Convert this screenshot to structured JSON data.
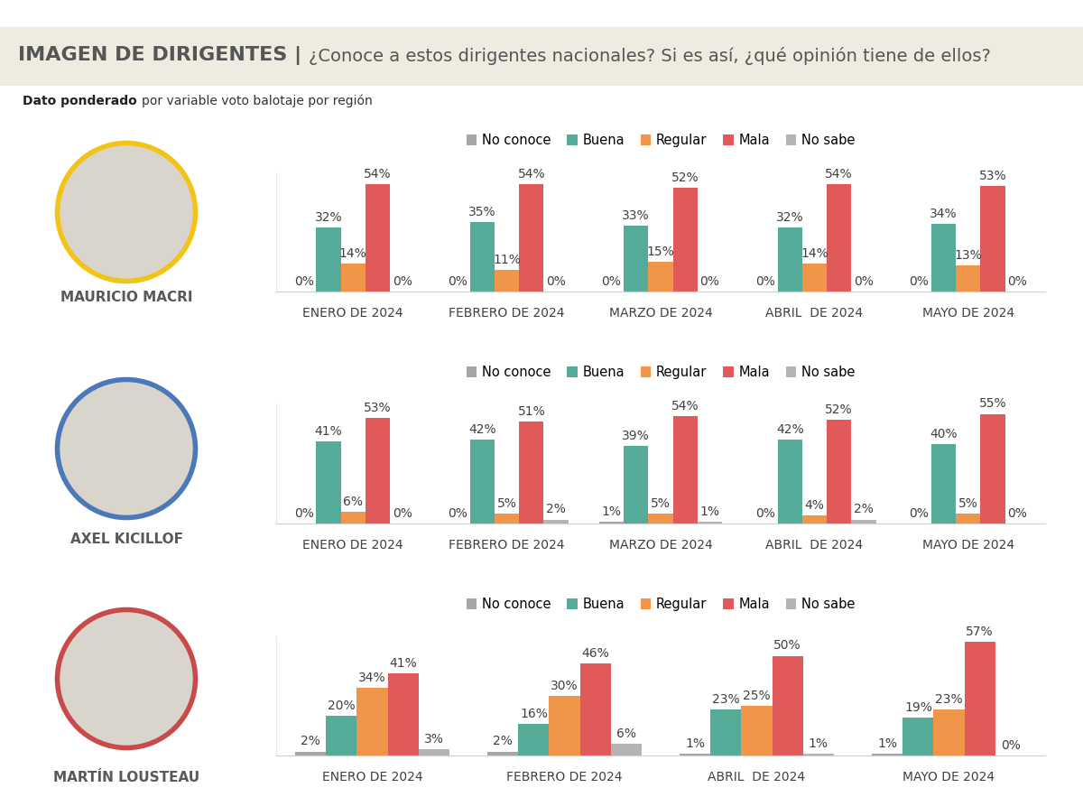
{
  "header": {
    "title": "IMAGEN DE DIRIGENTES |",
    "question": "¿Conoce a estos dirigentes nacionales? Si es así, ¿qué opinión tiene de ellos?",
    "note_bold": "Dato ponderado",
    "note": "por variable voto balotaje por región"
  },
  "chart_data": [
    {
      "type": "bar",
      "title": "MAURICIO MACRI",
      "categories": [
        "ENERO DE 2024",
        "FEBRERO DE 2024",
        "MARZO DE 2024",
        "ABRIL  DE 2024",
        "MAYO DE 2024"
      ],
      "series": [
        {
          "name": "No conoce",
          "color": "#a6a6a6",
          "values": [
            0,
            0,
            0,
            0,
            0
          ],
          "value_labels": [
            "0%",
            "0%",
            "0%",
            "0%",
            "0%"
          ]
        },
        {
          "name": "Buena",
          "color": "#55ab9a",
          "values": [
            32,
            35,
            33,
            32,
            34
          ],
          "value_labels": [
            "32%",
            "35%",
            "33%",
            "32%",
            "34%"
          ]
        },
        {
          "name": "Regular",
          "color": "#f0954a",
          "values": [
            14,
            11,
            15,
            14,
            13
          ],
          "value_labels": [
            "14%",
            "11%",
            "15%",
            "14%",
            "13%"
          ]
        },
        {
          "name": "Mala",
          "color": "#e05a5a",
          "values": [
            54,
            54,
            52,
            54,
            53
          ],
          "value_labels": [
            "54%",
            "54%",
            "52%",
            "54%",
            "53%"
          ]
        },
        {
          "name": "No sabe",
          "color": "#b4b4b4",
          "values": [
            0,
            0,
            0,
            0,
            0
          ],
          "value_labels": [
            "0%",
            "0%",
            "0%",
            "0%",
            "0%"
          ]
        }
      ],
      "ylim": [
        0,
        60
      ],
      "data_labels": true,
      "tick_labels": "x",
      "legend": "upper center",
      "grid": false
    },
    {
      "type": "bar",
      "title": "AXEL KICILLOF",
      "categories": [
        "ENERO DE 2024",
        "FEBRERO DE 2024",
        "MARZO DE 2024",
        "ABRIL  DE 2024",
        "MAYO DE 2024"
      ],
      "series": [
        {
          "name": "No conoce",
          "color": "#a6a6a6",
          "values": [
            0,
            0,
            1,
            0,
            0
          ],
          "value_labels": [
            "0%",
            "0%",
            "1%",
            "0%",
            "0%"
          ]
        },
        {
          "name": "Buena",
          "color": "#55ab9a",
          "values": [
            41,
            42,
            39,
            42,
            40
          ],
          "value_labels": [
            "41%",
            "42%",
            "39%",
            "42%",
            "40%"
          ]
        },
        {
          "name": "Regular",
          "color": "#f0954a",
          "values": [
            6,
            5,
            5,
            4,
            5
          ],
          "value_labels": [
            "6%",
            "5%",
            "5%",
            "4%",
            "5%"
          ]
        },
        {
          "name": "Mala",
          "color": "#e05a5a",
          "values": [
            53,
            51,
            54,
            52,
            55
          ],
          "value_labels": [
            "53%",
            "51%",
            "54%",
            "52%",
            "55%"
          ]
        },
        {
          "name": "No sabe",
          "color": "#b4b4b4",
          "values": [
            0,
            2,
            1,
            2,
            0
          ],
          "value_labels": [
            "0%",
            "2%",
            "1%",
            "2%",
            "0%"
          ]
        }
      ],
      "ylim": [
        0,
        60
      ],
      "data_labels": true,
      "tick_labels": "x",
      "legend": "upper center",
      "grid": false
    },
    {
      "type": "bar",
      "title": "MARTÍN LOUSTEAU",
      "categories": [
        "ENERO DE 2024",
        "FEBRERO DE 2024",
        "ABRIL  DE 2024",
        "MAYO DE 2024"
      ],
      "series": [
        {
          "name": "No conoce",
          "color": "#a6a6a6",
          "values": [
            2,
            2,
            1,
            1
          ],
          "value_labels": [
            "2%",
            "2%",
            "1%",
            "1%"
          ]
        },
        {
          "name": "Buena",
          "color": "#55ab9a",
          "values": [
            20,
            16,
            23,
            19
          ],
          "value_labels": [
            "20%",
            "16%",
            "23%",
            "19%"
          ]
        },
        {
          "name": "Regular",
          "color": "#f0954a",
          "values": [
            34,
            30,
            25,
            23
          ],
          "value_labels": [
            "34%",
            "30%",
            "25%",
            "23%"
          ]
        },
        {
          "name": "Mala",
          "color": "#e05a5a",
          "values": [
            41,
            46,
            50,
            57
          ],
          "value_labels": [
            "41%",
            "46%",
            "50%",
            "57%"
          ]
        },
        {
          "name": "No sabe",
          "color": "#b4b4b4",
          "values": [
            3,
            6,
            1,
            0
          ],
          "value_labels": [
            "3%",
            "6%",
            "1%",
            "0%"
          ]
        }
      ],
      "ylim": [
        0,
        60
      ],
      "data_labels": true,
      "tick_labels": "x",
      "legend": "upper center",
      "grid": false
    }
  ]
}
